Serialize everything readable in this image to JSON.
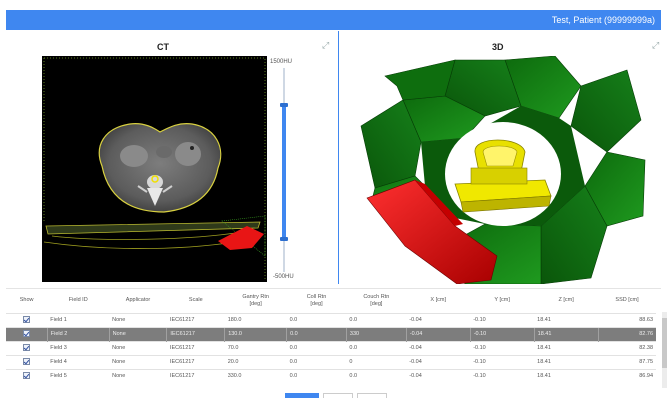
{
  "header": {
    "patient_label": "Test, Patient (99999999a)"
  },
  "ct_panel": {
    "title": "CT",
    "window_max": "1500HU",
    "window_min": "-500HU",
    "window_range_fraction": [
      0.18,
      0.84
    ]
  },
  "view3d_panel": {
    "title": "3D"
  },
  "colors": {
    "accent": "#3f87f0",
    "selected_row": "#7d7d7d",
    "beam_red": "#e81515",
    "gantry_green": "#148a14",
    "couch_yellow": "#f0e800"
  },
  "table": {
    "columns": [
      "Show",
      "Field ID",
      "Applicator",
      "Scale",
      "Gantry Rtn\n[deg]",
      "Coll Rtn\n[deg]",
      "Couch Rtn\n[deg]",
      "X [cm]",
      "Y [cm]",
      "Z [cm]",
      "SSD [cm]"
    ],
    "rows": [
      {
        "show": true,
        "field_id": "Field 1",
        "applicator": "None",
        "scale": "IEC61217",
        "gantry": "180.0",
        "coll": "0.0",
        "couch": "0.0",
        "x": "-0.04",
        "y": "-0.10",
        "z": "18.41",
        "ssd": "88.63",
        "selected": false
      },
      {
        "show": true,
        "field_id": "Field 2",
        "applicator": "None",
        "scale": "IEC61217",
        "gantry": "130.0",
        "coll": "0.0",
        "couch": "330",
        "x": "-0.04",
        "y": "-0.10",
        "z": "18.41",
        "ssd": "82.76",
        "selected": true
      },
      {
        "show": true,
        "field_id": "Field 3",
        "applicator": "None",
        "scale": "IEC61217",
        "gantry": "70.0",
        "coll": "0.0",
        "couch": "0.0",
        "x": "-0.04",
        "y": "-0.10",
        "z": "18.41",
        "ssd": "82.38",
        "selected": false
      },
      {
        "show": true,
        "field_id": "Field 4",
        "applicator": "None",
        "scale": "IEC61217",
        "gantry": "20.0",
        "coll": "0.0",
        "couch": "0",
        "x": "-0.04",
        "y": "-0.10",
        "z": "18.41",
        "ssd": "87.75",
        "selected": false
      },
      {
        "show": true,
        "field_id": "Field 5",
        "applicator": "None",
        "scale": "IEC61217",
        "gantry": "330.0",
        "coll": "0.0",
        "couch": "0.0",
        "x": "-0.04",
        "y": "-0.10",
        "z": "18.41",
        "ssd": "86.94",
        "selected": false
      }
    ]
  }
}
